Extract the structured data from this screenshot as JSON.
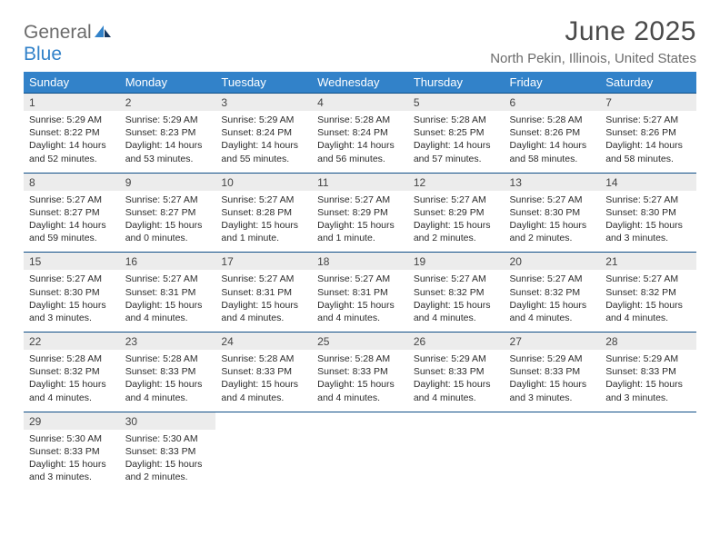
{
  "logo": {
    "part1": "General",
    "part2": "Blue"
  },
  "title": "June 2025",
  "location": "North Pekin, Illinois, United States",
  "colors": {
    "header_bg": "#3282c9",
    "header_fg": "#ffffff",
    "daynum_bg": "#ececec",
    "rule": "#0f4e87",
    "title_color": "#4a4a4a",
    "location_color": "#6b6b6b"
  },
  "dow": [
    "Sunday",
    "Monday",
    "Tuesday",
    "Wednesday",
    "Thursday",
    "Friday",
    "Saturday"
  ],
  "weeks": [
    [
      {
        "n": "1",
        "sr": "5:29 AM",
        "ss": "8:22 PM",
        "dl": "14 hours and 52 minutes."
      },
      {
        "n": "2",
        "sr": "5:29 AM",
        "ss": "8:23 PM",
        "dl": "14 hours and 53 minutes."
      },
      {
        "n": "3",
        "sr": "5:29 AM",
        "ss": "8:24 PM",
        "dl": "14 hours and 55 minutes."
      },
      {
        "n": "4",
        "sr": "5:28 AM",
        "ss": "8:24 PM",
        "dl": "14 hours and 56 minutes."
      },
      {
        "n": "5",
        "sr": "5:28 AM",
        "ss": "8:25 PM",
        "dl": "14 hours and 57 minutes."
      },
      {
        "n": "6",
        "sr": "5:28 AM",
        "ss": "8:26 PM",
        "dl": "14 hours and 58 minutes."
      },
      {
        "n": "7",
        "sr": "5:27 AM",
        "ss": "8:26 PM",
        "dl": "14 hours and 58 minutes."
      }
    ],
    [
      {
        "n": "8",
        "sr": "5:27 AM",
        "ss": "8:27 PM",
        "dl": "14 hours and 59 minutes."
      },
      {
        "n": "9",
        "sr": "5:27 AM",
        "ss": "8:27 PM",
        "dl": "15 hours and 0 minutes."
      },
      {
        "n": "10",
        "sr": "5:27 AM",
        "ss": "8:28 PM",
        "dl": "15 hours and 1 minute."
      },
      {
        "n": "11",
        "sr": "5:27 AM",
        "ss": "8:29 PM",
        "dl": "15 hours and 1 minute."
      },
      {
        "n": "12",
        "sr": "5:27 AM",
        "ss": "8:29 PM",
        "dl": "15 hours and 2 minutes."
      },
      {
        "n": "13",
        "sr": "5:27 AM",
        "ss": "8:30 PM",
        "dl": "15 hours and 2 minutes."
      },
      {
        "n": "14",
        "sr": "5:27 AM",
        "ss": "8:30 PM",
        "dl": "15 hours and 3 minutes."
      }
    ],
    [
      {
        "n": "15",
        "sr": "5:27 AM",
        "ss": "8:30 PM",
        "dl": "15 hours and 3 minutes."
      },
      {
        "n": "16",
        "sr": "5:27 AM",
        "ss": "8:31 PM",
        "dl": "15 hours and 4 minutes."
      },
      {
        "n": "17",
        "sr": "5:27 AM",
        "ss": "8:31 PM",
        "dl": "15 hours and 4 minutes."
      },
      {
        "n": "18",
        "sr": "5:27 AM",
        "ss": "8:31 PM",
        "dl": "15 hours and 4 minutes."
      },
      {
        "n": "19",
        "sr": "5:27 AM",
        "ss": "8:32 PM",
        "dl": "15 hours and 4 minutes."
      },
      {
        "n": "20",
        "sr": "5:27 AM",
        "ss": "8:32 PM",
        "dl": "15 hours and 4 minutes."
      },
      {
        "n": "21",
        "sr": "5:27 AM",
        "ss": "8:32 PM",
        "dl": "15 hours and 4 minutes."
      }
    ],
    [
      {
        "n": "22",
        "sr": "5:28 AM",
        "ss": "8:32 PM",
        "dl": "15 hours and 4 minutes."
      },
      {
        "n": "23",
        "sr": "5:28 AM",
        "ss": "8:33 PM",
        "dl": "15 hours and 4 minutes."
      },
      {
        "n": "24",
        "sr": "5:28 AM",
        "ss": "8:33 PM",
        "dl": "15 hours and 4 minutes."
      },
      {
        "n": "25",
        "sr": "5:28 AM",
        "ss": "8:33 PM",
        "dl": "15 hours and 4 minutes."
      },
      {
        "n": "26",
        "sr": "5:29 AM",
        "ss": "8:33 PM",
        "dl": "15 hours and 4 minutes."
      },
      {
        "n": "27",
        "sr": "5:29 AM",
        "ss": "8:33 PM",
        "dl": "15 hours and 3 minutes."
      },
      {
        "n": "28",
        "sr": "5:29 AM",
        "ss": "8:33 PM",
        "dl": "15 hours and 3 minutes."
      }
    ],
    [
      {
        "n": "29",
        "sr": "5:30 AM",
        "ss": "8:33 PM",
        "dl": "15 hours and 3 minutes."
      },
      {
        "n": "30",
        "sr": "5:30 AM",
        "ss": "8:33 PM",
        "dl": "15 hours and 2 minutes."
      },
      null,
      null,
      null,
      null,
      null
    ]
  ],
  "labels": {
    "sunrise": "Sunrise:",
    "sunset": "Sunset:",
    "daylight": "Daylight:"
  }
}
